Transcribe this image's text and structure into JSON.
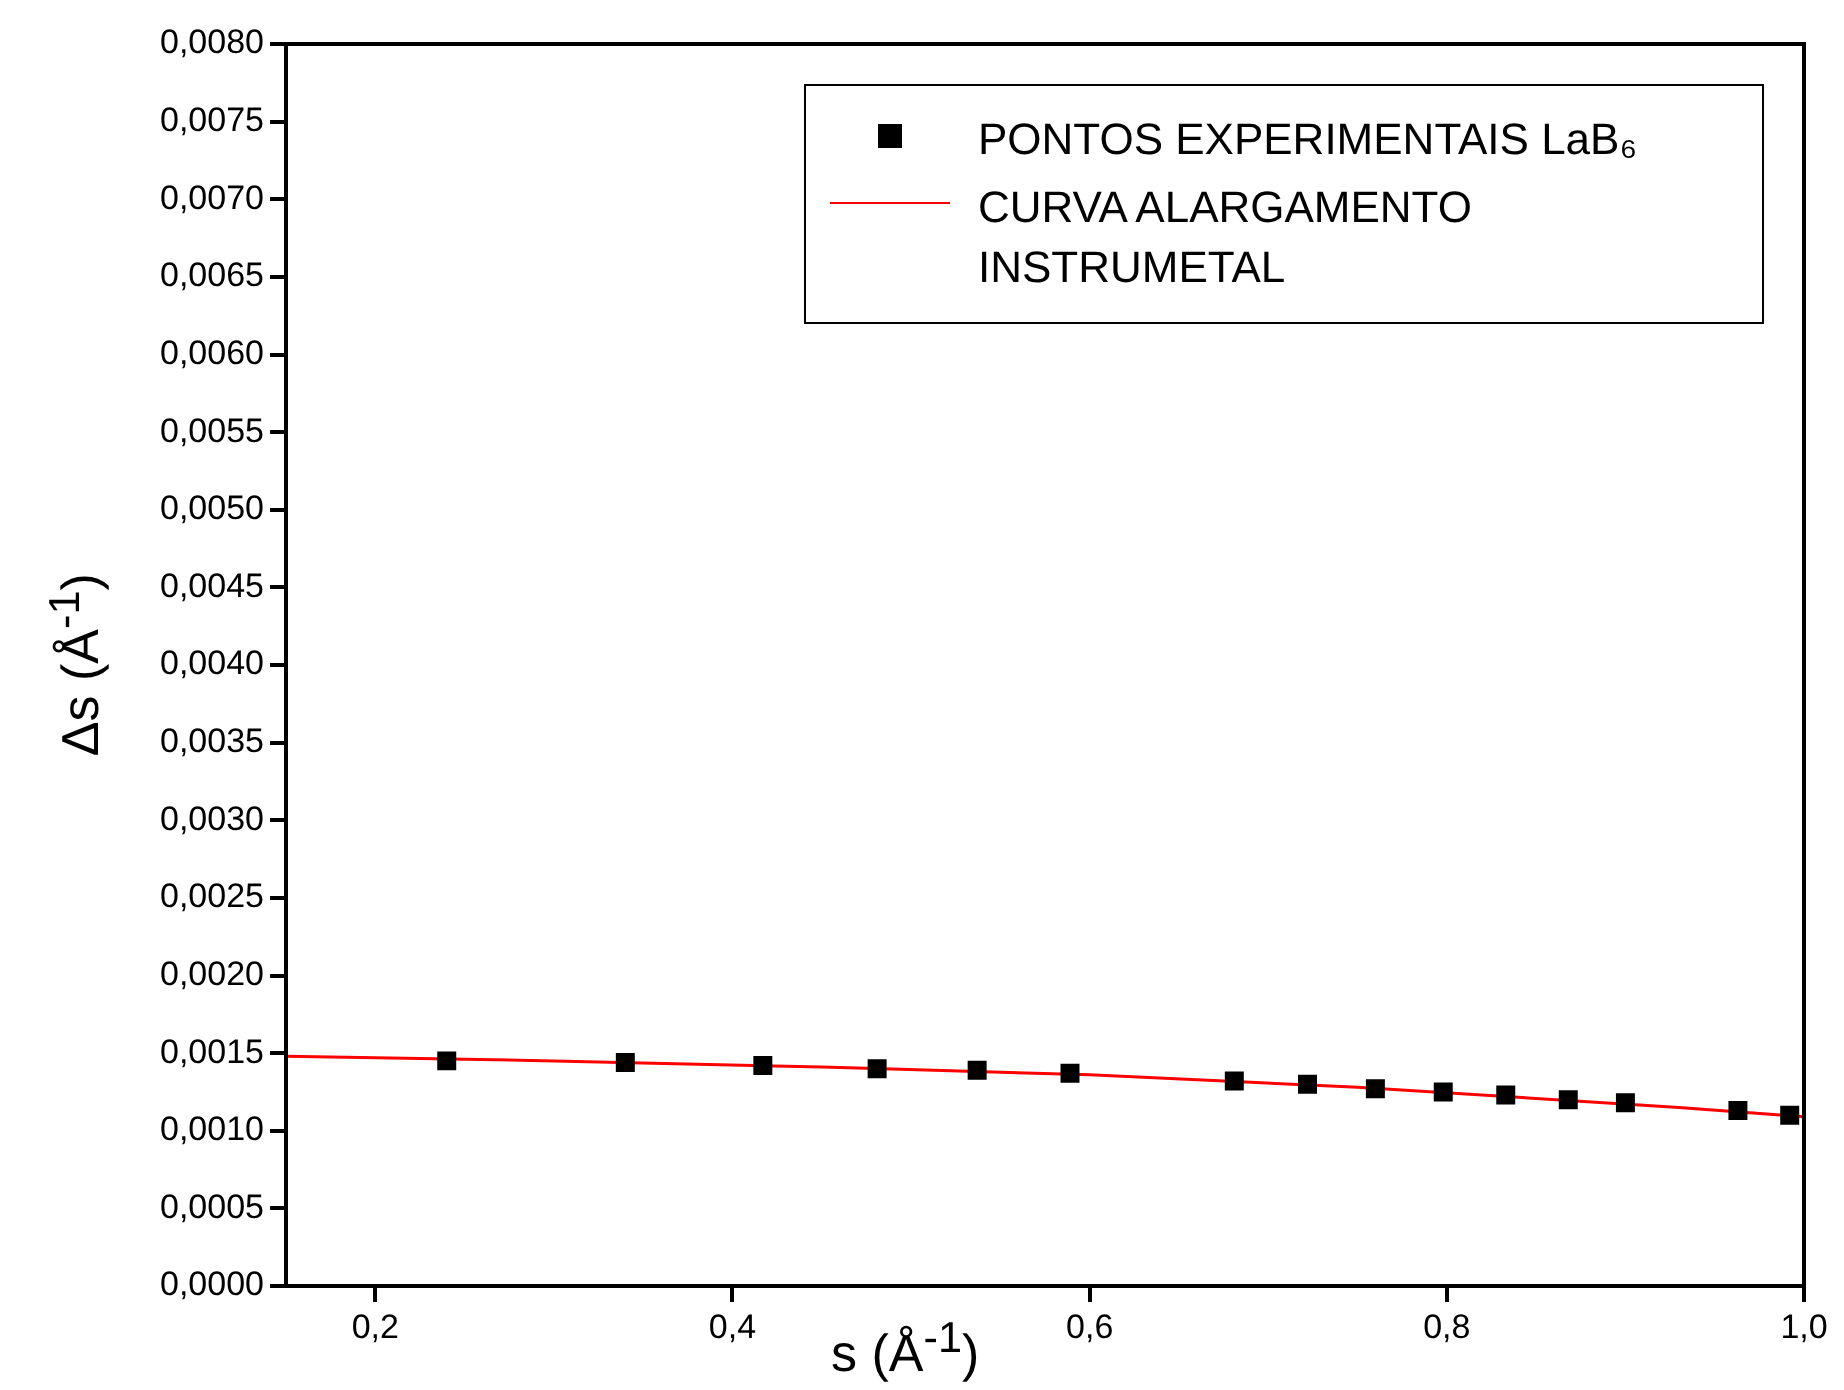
{
  "chart_data": {
    "type": "scatter",
    "xlabel": "s (Å$^{-1}$)",
    "ylabel": "Δs (Å$^{-1}$)",
    "series": [
      {
        "name": "PONTOS EXPERIMENTAIS LaB₆",
        "type": "scatter",
        "color": "#000000",
        "marker": "square",
        "x": [
          0.24,
          0.34,
          0.417,
          0.481,
          0.537,
          0.589,
          0.681,
          0.722,
          0.76,
          0.798,
          0.833,
          0.868,
          0.9,
          0.963,
          0.992
        ],
        "values": [
          0.00145,
          0.00144,
          0.00142,
          0.0014,
          0.00139,
          0.00137,
          0.00132,
          0.0013,
          0.00127,
          0.00125,
          0.00123,
          0.0012,
          0.00118,
          0.00113,
          0.0011
        ]
      },
      {
        "name": "CURVA ALARGAMENTO INSTRUMETAL",
        "type": "line",
        "color": "#ff0000",
        "marker": "none",
        "line_style": "solid",
        "x": [
          0.15,
          0.3,
          0.45,
          0.6,
          0.75,
          0.93,
          1.0
        ],
        "values": [
          0.00148,
          0.00145,
          0.00141,
          0.00136,
          0.00128,
          0.00115,
          0.00109
        ]
      }
    ],
    "xlim": [
      0.15,
      1.0
    ],
    "xticks": [
      {
        "value": 0.2,
        "label": "0,2"
      },
      {
        "value": 0.4,
        "label": "0,4"
      },
      {
        "value": 0.6,
        "label": "0,6"
      },
      {
        "value": 0.8,
        "label": "0,8"
      },
      {
        "value": 1.0,
        "label": "1,0"
      }
    ],
    "ylim": [
      0,
      0.008
    ],
    "yticks": [
      {
        "value": 0,
        "label": "0,0000"
      },
      {
        "value": 0.0005,
        "label": "0,0005"
      },
      {
        "value": 0.001,
        "label": "0,0010"
      },
      {
        "value": 0.0015,
        "label": "0,0015"
      },
      {
        "value": 0.002,
        "label": "0,0020"
      },
      {
        "value": 0.0025,
        "label": "0,0025"
      },
      {
        "value": 0.003,
        "label": "0,0030"
      },
      {
        "value": 0.0035,
        "label": "0,0035"
      },
      {
        "value": 0.004,
        "label": "0,0040"
      },
      {
        "value": 0.0045,
        "label": "0,0045"
      },
      {
        "value": 0.005,
        "label": "0,0050"
      },
      {
        "value": 0.0055,
        "label": "0,0055"
      },
      {
        "value": 0.006,
        "label": "0,0060"
      },
      {
        "value": 0.0065,
        "label": "0,0065"
      },
      {
        "value": 0.007,
        "label": "0,0070"
      },
      {
        "value": 0.0075,
        "label": "0,0075"
      },
      {
        "value": 0.008,
        "label": "0,0080"
      }
    ],
    "grid": false,
    "legend": "top right"
  }
}
